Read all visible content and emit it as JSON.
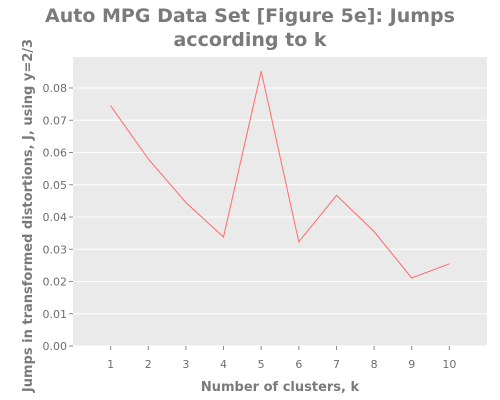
{
  "chart_data": {
    "type": "line",
    "title_lines": [
      "Auto MPG Data Set [Figure 5e]: Jumps",
      "according to k"
    ],
    "xlabel": "Number of clusters, k",
    "ylabel": "Jumps in transformed distortions, J, using y=2/3",
    "x": [
      1,
      2,
      3,
      4,
      5,
      6,
      7,
      8,
      9,
      10
    ],
    "series": [
      {
        "values": [
          0.0745,
          0.058,
          0.0445,
          0.0338,
          0.0852,
          0.0323,
          0.0467,
          0.0355,
          0.0211,
          0.0255
        ]
      }
    ],
    "xlim": [
      0,
      11
    ],
    "ylim": [
      0,
      0.08
    ],
    "x_ticks": [
      1,
      2,
      3,
      4,
      5,
      6,
      7,
      8,
      9,
      10
    ],
    "y_ticks": [
      0.0,
      0.01,
      0.02,
      0.03,
      0.04,
      0.05,
      0.06,
      0.07,
      0.08
    ],
    "y_tick_labels": [
      "0.00",
      "0.01",
      "0.02",
      "0.03",
      "0.04",
      "0.05",
      "0.06",
      "0.07",
      "0.08"
    ],
    "grid": true,
    "colors": {
      "plot_background": "#eaeaea",
      "grid": "#ffffff",
      "line": "#ff6b6b",
      "text": "#7a7a7a"
    }
  }
}
